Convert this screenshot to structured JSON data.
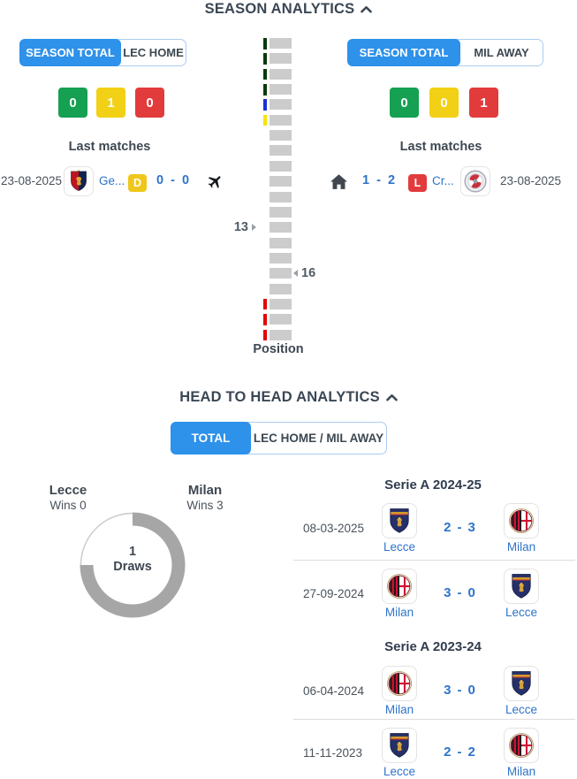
{
  "colors": {
    "accent_blue": "#2e91ea",
    "tab_border_blue": "#a9cdf0",
    "link_blue": "#2e74c9",
    "win_green": "#15a052",
    "draw_yellow": "#f2d015",
    "loss_red": "#e23b3c",
    "ladder_gray": "#cccccc",
    "donut_gray": "#a6a6a6"
  },
  "icons": {
    "collapse": "chevron-up-icon",
    "away_match": "airplane-icon",
    "home_match": "home-icon",
    "home_team_marker": "triangle-right-icon",
    "away_team_marker": "triangle-left-icon"
  },
  "season_analytics": {
    "title": "SEASON ANALYTICS",
    "home_panel": {
      "tabs": [
        {
          "label": "SEASON TOTAL",
          "active": true
        },
        {
          "label": "LEC HOME",
          "active": false
        }
      ],
      "record": {
        "wins": "0",
        "draws": "1",
        "losses": "0"
      },
      "last_matches_label": "Last matches",
      "last_match": {
        "date": "23-08-2025",
        "opponent_name": "Ge...",
        "opponent_logo": "genoa",
        "result_badge": "D",
        "score": "0 - 0",
        "venue": "away"
      }
    },
    "away_panel": {
      "tabs": [
        {
          "label": "SEASON TOTAL",
          "active": true
        },
        {
          "label": "MIL AWAY",
          "active": false
        }
      ],
      "record": {
        "wins": "0",
        "draws": "0",
        "losses": "1"
      },
      "last_matches_label": "Last matches",
      "last_match": {
        "date": "23-08-2025",
        "opponent_name": "Cr...",
        "opponent_logo": "cremonese",
        "result_badge": "L",
        "score": "1 - 2",
        "venue": "home"
      }
    },
    "position_ladder": {
      "axis_label": "Position",
      "total_positions": 20,
      "zones": [
        {
          "from": 1,
          "to": 4,
          "color": "#0a3a0a"
        },
        {
          "from": 5,
          "to": 5,
          "color": "#1c2fd6"
        },
        {
          "from": 6,
          "to": 6,
          "color": "#f5e400"
        },
        {
          "from": 18,
          "to": 20,
          "color": "#e60000"
        }
      ],
      "markers": [
        {
          "position": 13,
          "side": "left",
          "label": "13"
        },
        {
          "position": 16,
          "side": "right",
          "label": "16"
        }
      ]
    }
  },
  "head_to_head": {
    "title": "HEAD TO HEAD ANALYTICS",
    "tabs": [
      {
        "label": "TOTAL",
        "active": true
      },
      {
        "label": "LEC HOME / MIL AWAY",
        "active": false
      }
    ],
    "summary": {
      "left_team": "Lecce",
      "left_wins": "Wins 0",
      "right_team": "Milan",
      "right_wins": "Wins 3",
      "center_value": "1",
      "center_label": "Draws"
    },
    "score_separator": "-",
    "seasons": [
      {
        "label": "Serie A 2024-25",
        "matches": [
          {
            "date": "08-03-2025",
            "home_team": "Lecce",
            "home_logo": "lecce",
            "home_score": "2",
            "away_score": "3",
            "away_team": "Milan",
            "away_logo": "milan"
          },
          {
            "date": "27-09-2024",
            "home_team": "Milan",
            "home_logo": "milan",
            "home_score": "3",
            "away_score": "0",
            "away_team": "Lecce",
            "away_logo": "lecce"
          }
        ]
      },
      {
        "label": "Serie A 2023-24",
        "matches": [
          {
            "date": "06-04-2024",
            "home_team": "Milan",
            "home_logo": "milan",
            "home_score": "3",
            "away_score": "0",
            "away_team": "Lecce",
            "away_logo": "lecce"
          },
          {
            "date": "11-11-2023",
            "home_team": "Lecce",
            "home_logo": "lecce",
            "home_score": "2",
            "away_score": "2",
            "away_team": "Milan",
            "away_logo": "milan"
          }
        ]
      }
    ]
  },
  "chart_data": {
    "type": "pie",
    "subtype": "donut",
    "title": "HEAD TO HEAD ANALYTICS",
    "categories": [
      "Lecce Wins",
      "Draws",
      "Milan Wins"
    ],
    "values": [
      0,
      1,
      3
    ],
    "center_text": "1 Draws",
    "arc_color": "#a6a6a6",
    "legend_position": "top"
  }
}
